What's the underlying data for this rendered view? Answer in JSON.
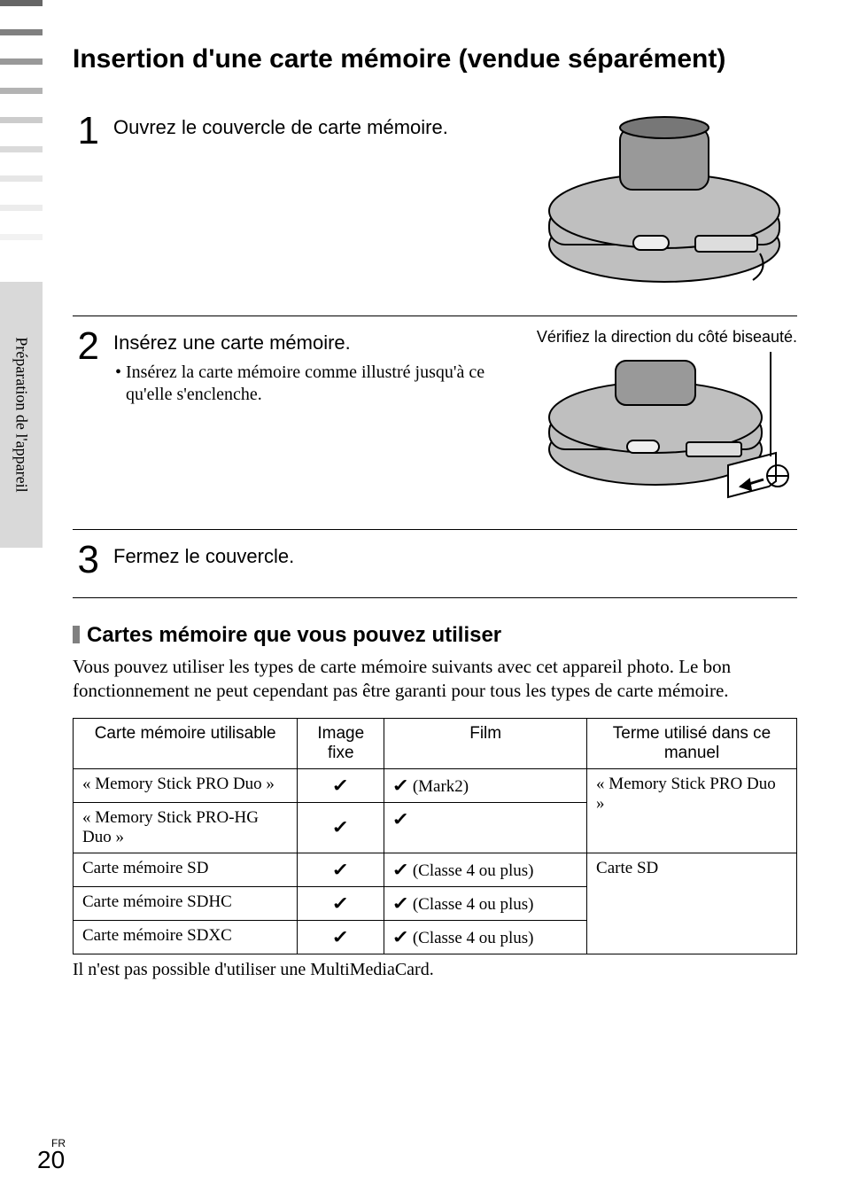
{
  "sideStripes": {
    "colors": [
      "#666666",
      "#808080",
      "#999999",
      "#b3b3b3",
      "#cccccc",
      "#dadada",
      "#e6e6e6",
      "#ececec",
      "#f2f2f2"
    ],
    "stripeHeightPx": 7,
    "gapPx": 26
  },
  "sideTab": {
    "label": "Préparation de l'appareil",
    "bg": "#d9d9d9"
  },
  "title": "Insertion d'une carte mémoire (vendue séparément)",
  "steps": [
    {
      "num": "1",
      "title": "Ouvrez le couvercle de carte mémoire."
    },
    {
      "num": "2",
      "title": "Insérez une carte mémoire.",
      "bullet": "Insérez la carte mémoire comme illustré jusqu'à ce qu'elle s'enclenche.",
      "caption": "Vérifiez la direction du côté biseauté."
    },
    {
      "num": "3",
      "title": "Fermez le couvercle."
    }
  ],
  "subheading": "Cartes mémoire que vous pouvez utiliser",
  "intro": "Vous pouvez utiliser les types de carte mémoire suivants avec cet appareil photo. Le bon fonctionnement ne peut cependant pas être garanti pour tous les types de carte mémoire.",
  "table": {
    "headers": [
      "Carte mémoire utilisable",
      "Image fixe",
      "Film",
      "Terme utilisé dans ce manuel"
    ],
    "colWidths": [
      "31%",
      "12%",
      "28%",
      "29%"
    ],
    "rows": [
      {
        "card": "« Memory Stick PRO Duo »",
        "image": true,
        "film": true,
        "filmNote": "(Mark2)",
        "termGroup": 0
      },
      {
        "card": "« Memory Stick PRO-HG Duo »",
        "image": true,
        "film": true,
        "filmNote": "",
        "termGroup": 0
      },
      {
        "card": "Carte mémoire SD",
        "image": true,
        "film": true,
        "filmNote": "(Classe 4 ou plus)",
        "termGroup": 1
      },
      {
        "card": "Carte mémoire SDHC",
        "image": true,
        "film": true,
        "filmNote": "(Classe 4 ou plus)",
        "termGroup": 1
      },
      {
        "card": "Carte mémoire SDXC",
        "image": true,
        "film": true,
        "filmNote": "(Classe 4 ou plus)",
        "termGroup": 1
      }
    ],
    "termGroups": [
      {
        "label": "« Memory Stick PRO Duo »",
        "span": 2
      },
      {
        "label": "Carte SD",
        "span": 3
      }
    ]
  },
  "footnote": "Il n'est pas possible d'utiliser une MultiMediaCard.",
  "page": {
    "langLabel": "FR",
    "number": "20"
  },
  "checkGlyph": "✓"
}
